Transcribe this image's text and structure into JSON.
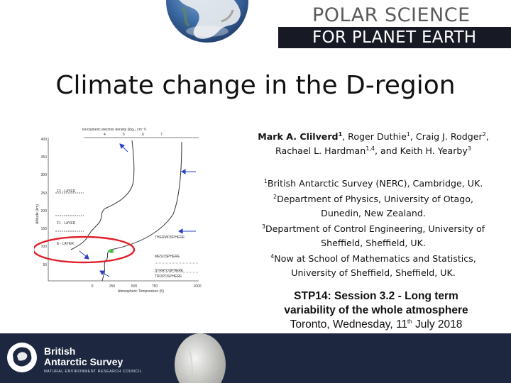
{
  "header": {
    "brand_line1": "POLAR SCIENCE",
    "brand_line2": "FOR PLANET EARTH",
    "globe_icon": "earth-globe-icon"
  },
  "title": "Climate change in the D-region",
  "authors": {
    "line1": [
      {
        "t": "Mark A. Clilverd"
      },
      {
        "s": "1"
      },
      {
        "t": ", Roger Duthie"
      },
      {
        "s": "1"
      },
      {
        "t": ", Craig J. Rodger"
      },
      {
        "s": "2"
      },
      {
        "t": ","
      }
    ],
    "line2": [
      {
        "t": "Rachael L. Hardman"
      },
      {
        "s": "1,4"
      },
      {
        "t": ", and Keith H. Yearby"
      },
      {
        "s": "3"
      }
    ]
  },
  "affiliations": [
    {
      "num": "1",
      "text": "British Antarctic Survey (NERC), Cambridge, UK."
    },
    {
      "num": "2",
      "text": "Department of Physics, University of Otago, Dunedin, New Zealand."
    },
    {
      "num": "3",
      "text": "Department of Control Engineering, University of Sheffield, Sheffield, UK."
    },
    {
      "num": "4",
      "text": "Now at School of Mathematics and Statistics, University of Sheffield, Sheffield, UK."
    }
  ],
  "session": {
    "line1": "STP14: Session 3.2 - Long term",
    "line2": "variability of the whole atmosphere",
    "line3_pre": "Toronto, Wednesday, 11",
    "line3_sup": "th",
    "line3_post": " July 2018"
  },
  "figure": {
    "top_axis_label": "Ionospheric electron density (log₁₀ cm⁻³)",
    "top_ticks": [
      "4",
      "5",
      "6",
      "7"
    ],
    "bottom_axis_label": "Atmospheric Temperature (K)",
    "bottom_ticks": [
      "0",
      "250",
      "500",
      "750",
      "1000"
    ],
    "y_axis_label": "Altitude (km)",
    "y_ticks": [
      "400",
      "350",
      "300",
      "250",
      "200",
      "150",
      "100",
      "50"
    ],
    "layers": [
      "F2 - LAYER",
      "F1 - LAYER",
      "E - LAYER"
    ],
    "regions": [
      "THERMOSPHERE",
      "MESOSPHERE",
      "STRATOSPHERE",
      "TROPOSPHERE"
    ],
    "highlight_color": "#e0202a",
    "arrow_color": "#2a3fc8",
    "dot_color": "#3ec63e"
  },
  "footer": {
    "org_line1": "British",
    "org_line2": "Antarctic Survey",
    "org_sub": "NATURAL ENVIRONMENT RESEARCH COUNCIL",
    "logo_icon": "bas-antarctica-logo-icon",
    "photo_icon": "weather-balloon-image"
  }
}
